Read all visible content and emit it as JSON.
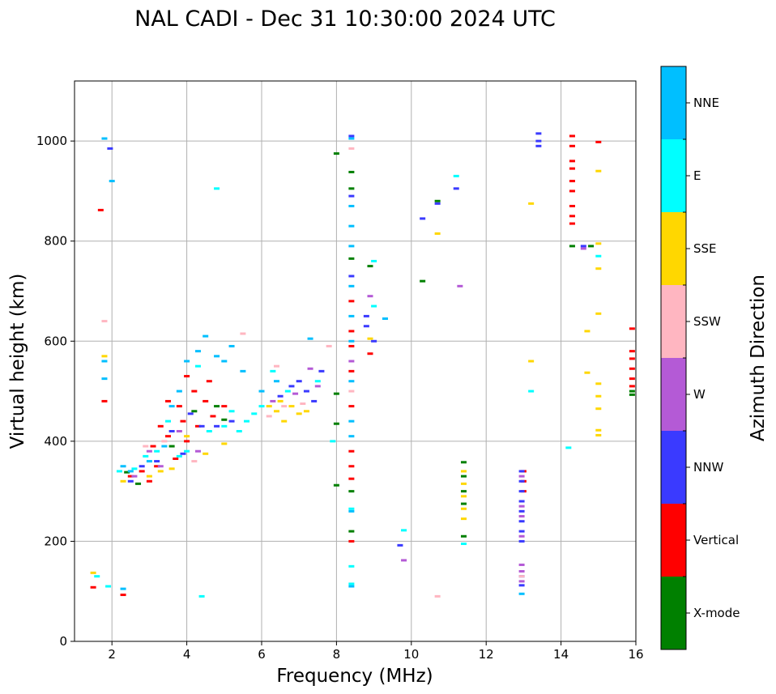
{
  "chart_data": {
    "type": "scatter",
    "title": "NAL CADI - Dec 31 10:30:00 2024 UTC",
    "xlabel": "Frequency (MHz)",
    "ylabel": "Virtual height (km)",
    "xlim": [
      1,
      16
    ],
    "ylim": [
      0,
      1120
    ],
    "xticks": [
      2,
      4,
      6,
      8,
      10,
      12,
      14,
      16
    ],
    "yticks": [
      0,
      200,
      400,
      600,
      800,
      1000
    ],
    "grid": true,
    "colorbar": {
      "label": "Azimuth Direction",
      "categories": [
        {
          "name": "X-mode",
          "color": "#008000"
        },
        {
          "name": "Vertical",
          "color": "#ff0000"
        },
        {
          "name": "NNW",
          "color": "#3a3aff"
        },
        {
          "name": "W",
          "color": "#b45ad6"
        },
        {
          "name": "SSW",
          "color": "#ffb6c1"
        },
        {
          "name": "SSE",
          "color": "#ffd700"
        },
        {
          "name": "E",
          "color": "#00ffff"
        },
        {
          "name": "NNE",
          "color": "#00bfff"
        }
      ]
    },
    "series": [
      {
        "name": "X-mode",
        "points": [
          [
            2.4,
            338
          ],
          [
            2.7,
            315
          ],
          [
            3.6,
            390
          ],
          [
            4.2,
            460
          ],
          [
            4.8,
            470
          ],
          [
            5.0,
            443
          ],
          [
            8.0,
            975
          ],
          [
            8.0,
            495
          ],
          [
            8.0,
            435
          ],
          [
            8.0,
            312
          ],
          [
            8.4,
            938
          ],
          [
            8.4,
            905
          ],
          [
            8.4,
            765
          ],
          [
            8.4,
            300
          ],
          [
            8.4,
            220
          ],
          [
            8.9,
            750
          ],
          [
            10.3,
            720
          ],
          [
            10.7,
            880
          ],
          [
            11.4,
            358
          ],
          [
            11.4,
            330
          ],
          [
            11.4,
            300
          ],
          [
            11.4,
            275
          ],
          [
            11.4,
            210
          ],
          [
            14.3,
            790
          ],
          [
            14.8,
            790
          ],
          [
            15.9,
            500
          ],
          [
            15.9,
            493
          ]
        ]
      },
      {
        "name": "Vertical",
        "points": [
          [
            1.7,
            862
          ],
          [
            1.8,
            480
          ],
          [
            2.5,
            330
          ],
          [
            2.8,
            340
          ],
          [
            3.0,
            320
          ],
          [
            3.1,
            390
          ],
          [
            3.2,
            350
          ],
          [
            3.3,
            430
          ],
          [
            3.5,
            410
          ],
          [
            3.5,
            480
          ],
          [
            3.7,
            365
          ],
          [
            3.8,
            470
          ],
          [
            3.9,
            440
          ],
          [
            4.0,
            530
          ],
          [
            4.0,
            400
          ],
          [
            4.2,
            500
          ],
          [
            4.3,
            430
          ],
          [
            4.5,
            480
          ],
          [
            4.6,
            520
          ],
          [
            4.7,
            450
          ],
          [
            5.0,
            470
          ],
          [
            1.5,
            108
          ],
          [
            2.3,
            93
          ],
          [
            8.4,
            680
          ],
          [
            8.4,
            620
          ],
          [
            8.4,
            590
          ],
          [
            8.4,
            540
          ],
          [
            8.4,
            470
          ],
          [
            8.4,
            380
          ],
          [
            8.4,
            350
          ],
          [
            8.4,
            325
          ],
          [
            8.4,
            200
          ],
          [
            8.9,
            575
          ],
          [
            13.0,
            340
          ],
          [
            13.0,
            320
          ],
          [
            13.0,
            300
          ],
          [
            14.3,
            1010
          ],
          [
            14.3,
            990
          ],
          [
            14.3,
            960
          ],
          [
            14.3,
            945
          ],
          [
            14.3,
            920
          ],
          [
            14.3,
            900
          ],
          [
            14.3,
            870
          ],
          [
            14.3,
            850
          ],
          [
            14.3,
            835
          ],
          [
            15.0,
            998
          ],
          [
            15.9,
            625
          ],
          [
            15.9,
            580
          ],
          [
            15.9,
            565
          ],
          [
            15.9,
            545
          ],
          [
            15.9,
            525
          ],
          [
            15.9,
            510
          ]
        ]
      },
      {
        "name": "NNW",
        "points": [
          [
            1.95,
            985
          ],
          [
            2.5,
            320
          ],
          [
            2.8,
            350
          ],
          [
            3.2,
            360
          ],
          [
            3.6,
            420
          ],
          [
            3.9,
            375
          ],
          [
            4.1,
            455
          ],
          [
            4.4,
            430
          ],
          [
            4.8,
            430
          ],
          [
            5.2,
            440
          ],
          [
            6.5,
            490
          ],
          [
            6.8,
            510
          ],
          [
            7.0,
            520
          ],
          [
            7.2,
            500
          ],
          [
            7.4,
            480
          ],
          [
            7.6,
            540
          ],
          [
            8.4,
            1010
          ],
          [
            8.4,
            890
          ],
          [
            8.4,
            730
          ],
          [
            8.8,
            630
          ],
          [
            8.8,
            650
          ],
          [
            9.0,
            600
          ],
          [
            9.7,
            192
          ],
          [
            10.3,
            845
          ],
          [
            10.7,
            875
          ],
          [
            11.2,
            905
          ],
          [
            12.95,
            340
          ],
          [
            12.95,
            320
          ],
          [
            12.95,
            300
          ],
          [
            12.95,
            280
          ],
          [
            12.95,
            260
          ],
          [
            12.95,
            240
          ],
          [
            12.95,
            220
          ],
          [
            12.95,
            200
          ],
          [
            12.95,
            130
          ],
          [
            12.95,
            112
          ],
          [
            13.4,
            1015
          ],
          [
            13.4,
            1000
          ],
          [
            13.4,
            990
          ],
          [
            14.6,
            790
          ]
        ]
      },
      {
        "name": "W",
        "points": [
          [
            2.6,
            330
          ],
          [
            3.0,
            380
          ],
          [
            3.3,
            350
          ],
          [
            3.8,
            420
          ],
          [
            4.3,
            380
          ],
          [
            6.3,
            480
          ],
          [
            6.9,
            495
          ],
          [
            7.3,
            545
          ],
          [
            7.5,
            510
          ],
          [
            8.4,
            560
          ],
          [
            8.9,
            690
          ],
          [
            9.8,
            162
          ],
          [
            11.3,
            710
          ],
          [
            12.95,
            330
          ],
          [
            12.95,
            270
          ],
          [
            12.95,
            250
          ],
          [
            12.95,
            210
          ],
          [
            12.95,
            153
          ],
          [
            12.95,
            140
          ],
          [
            12.95,
            120
          ],
          [
            14.6,
            785
          ]
        ]
      },
      {
        "name": "SSW",
        "points": [
          [
            1.8,
            640
          ],
          [
            2.9,
            390
          ],
          [
            3.4,
            400
          ],
          [
            4.2,
            360
          ],
          [
            5.5,
            615
          ],
          [
            6.2,
            450
          ],
          [
            6.4,
            550
          ],
          [
            6.6,
            470
          ],
          [
            7.1,
            475
          ],
          [
            7.8,
            590
          ],
          [
            8.4,
            985
          ],
          [
            8.4,
            500
          ],
          [
            10.7,
            90
          ],
          [
            12.95,
            130
          ]
        ]
      },
      {
        "name": "SSE",
        "points": [
          [
            1.5,
            137
          ],
          [
            1.8,
            570
          ],
          [
            2.3,
            320
          ],
          [
            3.0,
            330
          ],
          [
            3.3,
            340
          ],
          [
            3.6,
            345
          ],
          [
            4.0,
            410
          ],
          [
            4.5,
            375
          ],
          [
            5.0,
            395
          ],
          [
            6.2,
            470
          ],
          [
            6.4,
            460
          ],
          [
            6.5,
            480
          ],
          [
            6.6,
            440
          ],
          [
            6.8,
            470
          ],
          [
            7.0,
            455
          ],
          [
            7.2,
            460
          ],
          [
            8.9,
            605
          ],
          [
            10.7,
            815
          ],
          [
            11.4,
            340
          ],
          [
            11.4,
            315
          ],
          [
            11.4,
            290
          ],
          [
            11.4,
            265
          ],
          [
            11.4,
            245
          ],
          [
            13.2,
            875
          ],
          [
            13.2,
            560
          ],
          [
            14.7,
            620
          ],
          [
            14.7,
            537
          ],
          [
            15.0,
            940
          ],
          [
            15.0,
            795
          ],
          [
            15.0,
            745
          ],
          [
            15.0,
            655
          ],
          [
            15.0,
            515
          ],
          [
            15.0,
            490
          ],
          [
            15.0,
            465
          ],
          [
            15.0,
            422
          ],
          [
            15.0,
            412
          ]
        ]
      },
      {
        "name": "E",
        "points": [
          [
            1.6,
            130
          ],
          [
            1.9,
            110
          ],
          [
            2.2,
            340
          ],
          [
            2.6,
            345
          ],
          [
            2.9,
            370
          ],
          [
            3.2,
            380
          ],
          [
            3.5,
            440
          ],
          [
            3.8,
            370
          ],
          [
            4.0,
            380
          ],
          [
            4.3,
            550
          ],
          [
            4.6,
            420
          ],
          [
            4.8,
            905
          ],
          [
            5.0,
            430
          ],
          [
            5.2,
            460
          ],
          [
            5.4,
            420
          ],
          [
            5.6,
            440
          ],
          [
            5.8,
            455
          ],
          [
            6.0,
            470
          ],
          [
            6.3,
            540
          ],
          [
            6.7,
            500
          ],
          [
            7.5,
            520
          ],
          [
            7.9,
            400
          ],
          [
            8.4,
            265
          ],
          [
            8.4,
            150
          ],
          [
            8.4,
            115
          ],
          [
            9.0,
            760
          ],
          [
            9.0,
            670
          ],
          [
            9.8,
            222
          ],
          [
            11.2,
            930
          ],
          [
            11.4,
            195
          ],
          [
            13.2,
            500
          ],
          [
            14.2,
            387
          ],
          [
            15.0,
            770
          ],
          [
            4.4,
            90
          ]
        ]
      },
      {
        "name": "NNE",
        "points": [
          [
            1.8,
            1005
          ],
          [
            1.8,
            560
          ],
          [
            1.8,
            525
          ],
          [
            2.0,
            920
          ],
          [
            2.3,
            350
          ],
          [
            2.5,
            340
          ],
          [
            3.0,
            360
          ],
          [
            3.4,
            390
          ],
          [
            3.6,
            470
          ],
          [
            3.8,
            500
          ],
          [
            4.0,
            560
          ],
          [
            4.3,
            580
          ],
          [
            4.5,
            610
          ],
          [
            4.8,
            570
          ],
          [
            5.0,
            560
          ],
          [
            5.2,
            590
          ],
          [
            5.5,
            540
          ],
          [
            6.0,
            500
          ],
          [
            6.4,
            520
          ],
          [
            7.3,
            605
          ],
          [
            8.4,
            1005
          ],
          [
            8.4,
            870
          ],
          [
            8.4,
            830
          ],
          [
            8.4,
            790
          ],
          [
            8.4,
            710
          ],
          [
            8.4,
            650
          ],
          [
            8.4,
            600
          ],
          [
            8.4,
            520
          ],
          [
            8.4,
            440
          ],
          [
            8.4,
            410
          ],
          [
            8.4,
            260
          ],
          [
            8.4,
            110
          ],
          [
            9.3,
            645
          ],
          [
            12.95,
            95
          ],
          [
            2.3,
            105
          ]
        ]
      }
    ]
  }
}
